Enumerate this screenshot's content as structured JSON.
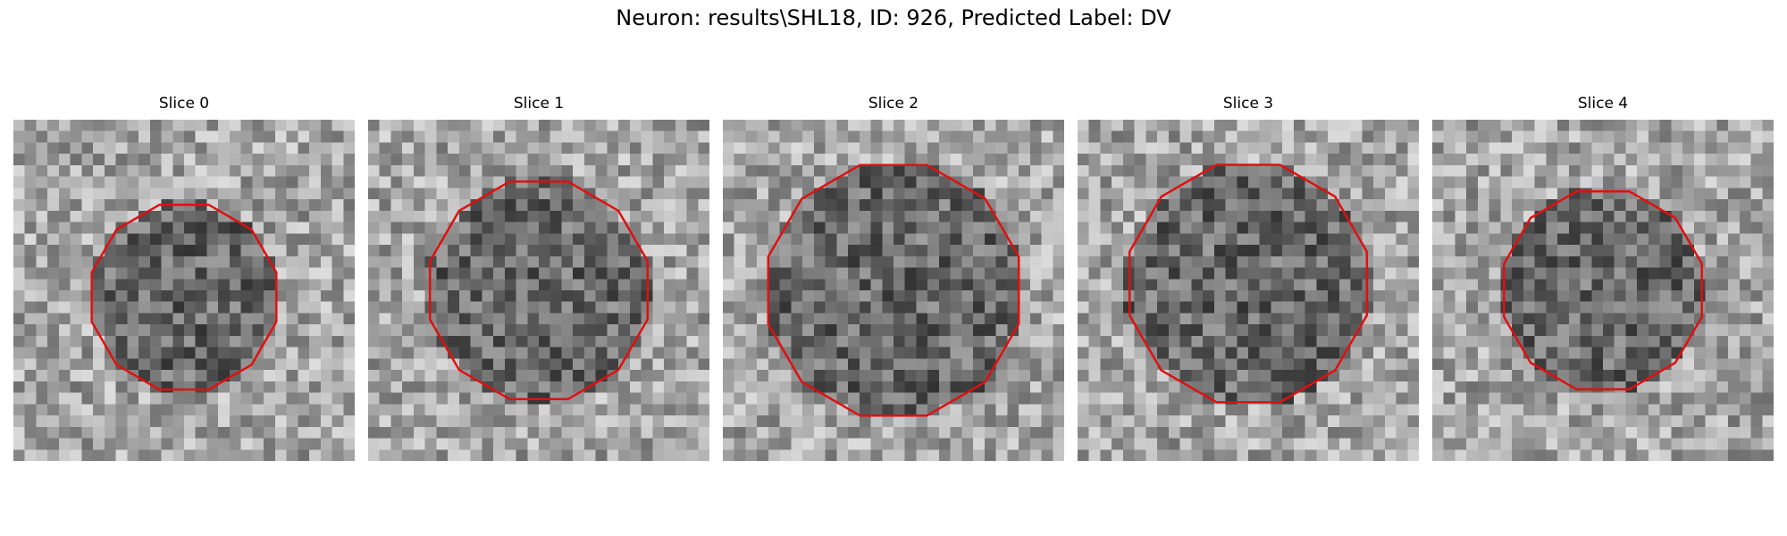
{
  "figure": {
    "title": "Neuron: results\\SHL18, ID: 926, Predicted Label: DV"
  },
  "panels": [
    {
      "title": "Slice 0",
      "center": [
        0.5,
        0.52
      ],
      "radius": 0.28,
      "contour_color": "#e01010"
    },
    {
      "title": "Slice 1",
      "center": [
        0.5,
        0.5
      ],
      "radius": 0.33,
      "contour_color": "#e01010"
    },
    {
      "title": "Slice 2",
      "center": [
        0.5,
        0.5
      ],
      "radius": 0.38,
      "contour_color": "#e01010"
    },
    {
      "title": "Slice 3",
      "center": [
        0.5,
        0.48
      ],
      "radius": 0.36,
      "contour_color": "#e01010"
    },
    {
      "title": "Slice 4",
      "center": [
        0.5,
        0.5
      ],
      "radius": 0.3,
      "contour_color": "#e01010"
    }
  ]
}
